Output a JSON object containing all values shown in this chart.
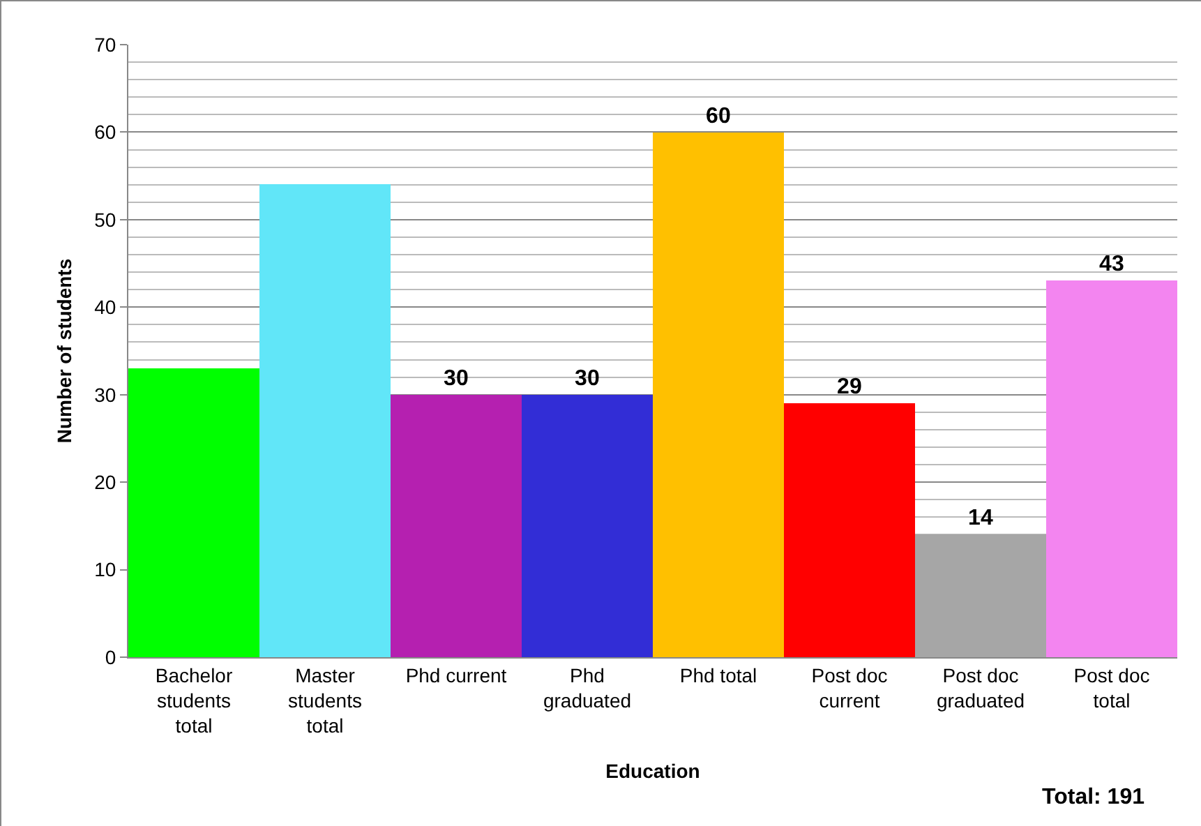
{
  "chart_data": {
    "type": "bar",
    "xlabel": "Education",
    "ylabel": "Number of students",
    "categories": [
      "Bachelor students total",
      "Master students total",
      "Phd current",
      "Phd graduated",
      "Phd total",
      "Post doc current",
      "Post doc graduated",
      "Post doc total"
    ],
    "values": [
      33,
      54,
      30,
      30,
      60,
      29,
      14,
      43
    ],
    "colors": [
      "#00ff00",
      "#61e6f8",
      "#b520b0",
      "#322dd6",
      "#ffc000",
      "#ff0000",
      "#a6a6a6",
      "#f385f0"
    ],
    "value_labels": [
      null,
      null,
      "30",
      "30",
      "60",
      "29",
      "14",
      "43"
    ],
    "ylim": [
      0,
      70
    ],
    "yticks": [
      0,
      10,
      20,
      30,
      40,
      50,
      60,
      70
    ],
    "grid": "y",
    "annotations": [
      "Total: 191"
    ]
  }
}
